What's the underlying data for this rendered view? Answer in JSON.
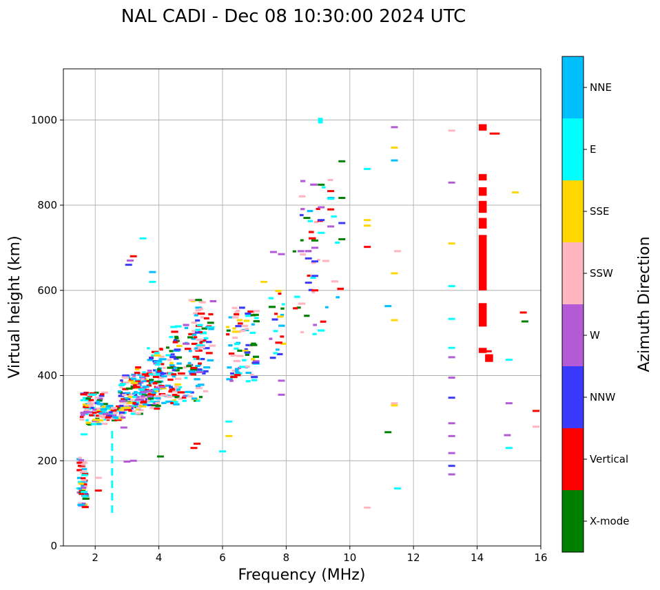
{
  "chart_data": {
    "type": "scatter",
    "title": "NAL CADI - Dec 08 10:30:00 2024 UTC",
    "xlabel": "Frequency (MHz)",
    "ylabel": "Virtual height (km)",
    "xlim": [
      1,
      16
    ],
    "ylim": [
      0,
      1120
    ],
    "xticks": [
      2,
      4,
      6,
      8,
      10,
      12,
      14,
      16
    ],
    "yticks": [
      0,
      200,
      400,
      600,
      800,
      1000
    ],
    "grid": true,
    "colorbar": {
      "title": "Azimuth Direction",
      "categories": [
        {
          "name": "X-mode",
          "color": "#008000"
        },
        {
          "name": "Vertical",
          "color": "#ff0000"
        },
        {
          "name": "NNW",
          "color": "#3a3aff"
        },
        {
          "name": "W",
          "color": "#b35ad6"
        },
        {
          "name": "SSW",
          "color": "#ffb6c1"
        },
        {
          "name": "SSE",
          "color": "#ffd700"
        },
        {
          "name": "E",
          "color": "#00ffff"
        },
        {
          "name": "NNE",
          "color": "#00bfff"
        }
      ]
    },
    "clusters": [
      {
        "x": [
          1.5,
          1.7
        ],
        "y": [
          90,
          210
        ],
        "n": 55
      },
      {
        "x": [
          1.6,
          2.3
        ],
        "y": [
          285,
          360
        ],
        "n": 70
      },
      {
        "x": [
          2.2,
          3.0
        ],
        "y": [
          295,
          330
        ],
        "n": 60
      },
      {
        "x": [
          2.8,
          3.6
        ],
        "y": [
          310,
          400
        ],
        "n": 90
      },
      {
        "x": [
          3.2,
          4.2
        ],
        "y": [
          320,
          420
        ],
        "n": 110
      },
      {
        "x": [
          3.7,
          4.6
        ],
        "y": [
          330,
          470
        ],
        "n": 90
      },
      {
        "x": [
          4.4,
          5.5
        ],
        "y": [
          340,
          520
        ],
        "n": 90
      },
      {
        "x": [
          5.0,
          5.7
        ],
        "y": [
          400,
          580
        ],
        "n": 50
      },
      {
        "x": [
          6.2,
          7.1
        ],
        "y": [
          380,
          560
        ],
        "n": 80
      },
      {
        "x": [
          7.5,
          8.0
        ],
        "y": [
          440,
          600
        ],
        "n": 20
      },
      {
        "x": [
          8.3,
          9.8
        ],
        "y": [
          490,
          860
        ],
        "n": 45
      }
    ],
    "segments": [
      {
        "x0": 2.5,
        "x1": 2.56,
        "y0": 90,
        "y1": 270,
        "mode": "E",
        "dashed": true
      },
      {
        "x0": 14.05,
        "x1": 14.3,
        "y0": 515,
        "y1": 570,
        "mode": "Vertical"
      },
      {
        "x0": 14.05,
        "x1": 14.3,
        "y0": 600,
        "y1": 730,
        "mode": "Vertical"
      },
      {
        "x0": 14.05,
        "x1": 14.3,
        "y0": 745,
        "y1": 770,
        "mode": "Vertical"
      },
      {
        "x0": 14.05,
        "x1": 14.3,
        "y0": 782,
        "y1": 810,
        "mode": "Vertical"
      },
      {
        "x0": 14.05,
        "x1": 14.3,
        "y0": 822,
        "y1": 842,
        "mode": "Vertical"
      },
      {
        "x0": 14.05,
        "x1": 14.3,
        "y0": 858,
        "y1": 873,
        "mode": "Vertical"
      },
      {
        "x0": 14.05,
        "x1": 14.3,
        "y0": 975,
        "y1": 990,
        "mode": "Vertical"
      },
      {
        "x0": 14.05,
        "x1": 14.3,
        "y0": 453,
        "y1": 465,
        "mode": "Vertical"
      },
      {
        "x0": 14.25,
        "x1": 14.5,
        "y0": 432,
        "y1": 450,
        "mode": "Vertical"
      },
      {
        "x0": 9.0,
        "x1": 9.15,
        "y0": 992,
        "y1": 1005,
        "mode": "E"
      }
    ],
    "points": [
      {
        "x": 14.5,
        "y": 968,
        "mode": "Vertical"
      },
      {
        "x": 14.6,
        "y": 968,
        "mode": "Vertical"
      },
      {
        "x": 14.35,
        "y": 457,
        "mode": "Vertical"
      },
      {
        "x": 15.2,
        "y": 830,
        "mode": "SSE"
      },
      {
        "x": 15.45,
        "y": 548,
        "mode": "Vertical"
      },
      {
        "x": 15.5,
        "y": 527,
        "mode": "X-mode"
      },
      {
        "x": 15.0,
        "y": 437,
        "mode": "E"
      },
      {
        "x": 15.0,
        "y": 335,
        "mode": "W"
      },
      {
        "x": 14.95,
        "y": 260,
        "mode": "W"
      },
      {
        "x": 15.0,
        "y": 230,
        "mode": "E"
      },
      {
        "x": 15.85,
        "y": 317,
        "mode": "Vertical"
      },
      {
        "x": 15.85,
        "y": 280,
        "mode": "SSW"
      },
      {
        "x": 13.2,
        "y": 975,
        "mode": "SSW"
      },
      {
        "x": 13.2,
        "y": 853,
        "mode": "W"
      },
      {
        "x": 13.2,
        "y": 710,
        "mode": "SSE"
      },
      {
        "x": 13.2,
        "y": 610,
        "mode": "E"
      },
      {
        "x": 13.2,
        "y": 533,
        "mode": "E"
      },
      {
        "x": 13.2,
        "y": 465,
        "mode": "E"
      },
      {
        "x": 13.2,
        "y": 443,
        "mode": "W"
      },
      {
        "x": 13.2,
        "y": 395,
        "mode": "W"
      },
      {
        "x": 13.2,
        "y": 348,
        "mode": "NNW"
      },
      {
        "x": 13.2,
        "y": 288,
        "mode": "W"
      },
      {
        "x": 13.2,
        "y": 258,
        "mode": "W"
      },
      {
        "x": 13.2,
        "y": 218,
        "mode": "W"
      },
      {
        "x": 13.2,
        "y": 188,
        "mode": "NNW"
      },
      {
        "x": 13.2,
        "y": 168,
        "mode": "W"
      },
      {
        "x": 11.4,
        "y": 983,
        "mode": "W"
      },
      {
        "x": 11.4,
        "y": 935,
        "mode": "SSE"
      },
      {
        "x": 11.4,
        "y": 905,
        "mode": "NNE"
      },
      {
        "x": 11.5,
        "y": 692,
        "mode": "SSW"
      },
      {
        "x": 11.4,
        "y": 640,
        "mode": "SSE"
      },
      {
        "x": 11.2,
        "y": 563,
        "mode": "NNE"
      },
      {
        "x": 11.4,
        "y": 530,
        "mode": "SSE"
      },
      {
        "x": 11.4,
        "y": 335,
        "mode": "SSW"
      },
      {
        "x": 11.4,
        "y": 330,
        "mode": "SSE"
      },
      {
        "x": 11.2,
        "y": 267,
        "mode": "X-mode"
      },
      {
        "x": 11.5,
        "y": 135,
        "mode": "E"
      },
      {
        "x": 10.55,
        "y": 885,
        "mode": "E"
      },
      {
        "x": 10.55,
        "y": 765,
        "mode": "SSE"
      },
      {
        "x": 10.55,
        "y": 752,
        "mode": "SSE"
      },
      {
        "x": 10.55,
        "y": 702,
        "mode": "Vertical"
      },
      {
        "x": 10.55,
        "y": 90,
        "mode": "SSW"
      },
      {
        "x": 9.75,
        "y": 903,
        "mode": "X-mode"
      },
      {
        "x": 9.75,
        "y": 817,
        "mode": "X-mode"
      },
      {
        "x": 9.75,
        "y": 758,
        "mode": "NNW"
      },
      {
        "x": 9.75,
        "y": 720,
        "mode": "X-mode"
      },
      {
        "x": 9.4,
        "y": 833,
        "mode": "Vertical"
      },
      {
        "x": 9.4,
        "y": 790,
        "mode": "Vertical"
      },
      {
        "x": 9.4,
        "y": 750,
        "mode": "W"
      },
      {
        "x": 9.4,
        "y": 815,
        "mode": "E"
      },
      {
        "x": 9.1,
        "y": 848,
        "mode": "X-mode"
      },
      {
        "x": 9.1,
        "y": 795,
        "mode": "W"
      },
      {
        "x": 9.1,
        "y": 765,
        "mode": "NNW"
      },
      {
        "x": 9.1,
        "y": 735,
        "mode": "E"
      },
      {
        "x": 8.9,
        "y": 717,
        "mode": "X-mode"
      },
      {
        "x": 8.9,
        "y": 700,
        "mode": "W"
      },
      {
        "x": 8.9,
        "y": 668,
        "mode": "NNW"
      },
      {
        "x": 8.9,
        "y": 634,
        "mode": "NNW"
      },
      {
        "x": 8.9,
        "y": 600,
        "mode": "Vertical"
      },
      {
        "x": 8.65,
        "y": 770,
        "mode": "X-mode"
      },
      {
        "x": 8.7,
        "y": 675,
        "mode": "NNW"
      },
      {
        "x": 8.7,
        "y": 618,
        "mode": "NNW"
      },
      {
        "x": 7.85,
        "y": 685,
        "mode": "W"
      },
      {
        "x": 7.6,
        "y": 690,
        "mode": "W"
      },
      {
        "x": 7.85,
        "y": 388,
        "mode": "W"
      },
      {
        "x": 7.85,
        "y": 355,
        "mode": "W"
      },
      {
        "x": 7.3,
        "y": 620,
        "mode": "SSE"
      },
      {
        "x": 3.1,
        "y": 670,
        "mode": "W"
      },
      {
        "x": 3.05,
        "y": 660,
        "mode": "NNW"
      },
      {
        "x": 3.2,
        "y": 680,
        "mode": "Vertical"
      },
      {
        "x": 3.5,
        "y": 722,
        "mode": "E"
      },
      {
        "x": 3.8,
        "y": 643,
        "mode": "NNE"
      },
      {
        "x": 3.8,
        "y": 620,
        "mode": "E"
      },
      {
        "x": 5.2,
        "y": 240,
        "mode": "Vertical"
      },
      {
        "x": 5.1,
        "y": 230,
        "mode": "Vertical"
      },
      {
        "x": 4.05,
        "y": 210,
        "mode": "X-mode"
      },
      {
        "x": 3.0,
        "y": 198,
        "mode": "W"
      },
      {
        "x": 3.2,
        "y": 200,
        "mode": "W"
      },
      {
        "x": 2.9,
        "y": 278,
        "mode": "W"
      },
      {
        "x": 6.0,
        "y": 222,
        "mode": "E"
      },
      {
        "x": 6.2,
        "y": 292,
        "mode": "E"
      },
      {
        "x": 6.2,
        "y": 258,
        "mode": "SSE"
      },
      {
        "x": 2.1,
        "y": 130,
        "mode": "Vertical"
      },
      {
        "x": 2.1,
        "y": 160,
        "mode": "SSW"
      },
      {
        "x": 1.65,
        "y": 262,
        "mode": "E"
      }
    ]
  }
}
